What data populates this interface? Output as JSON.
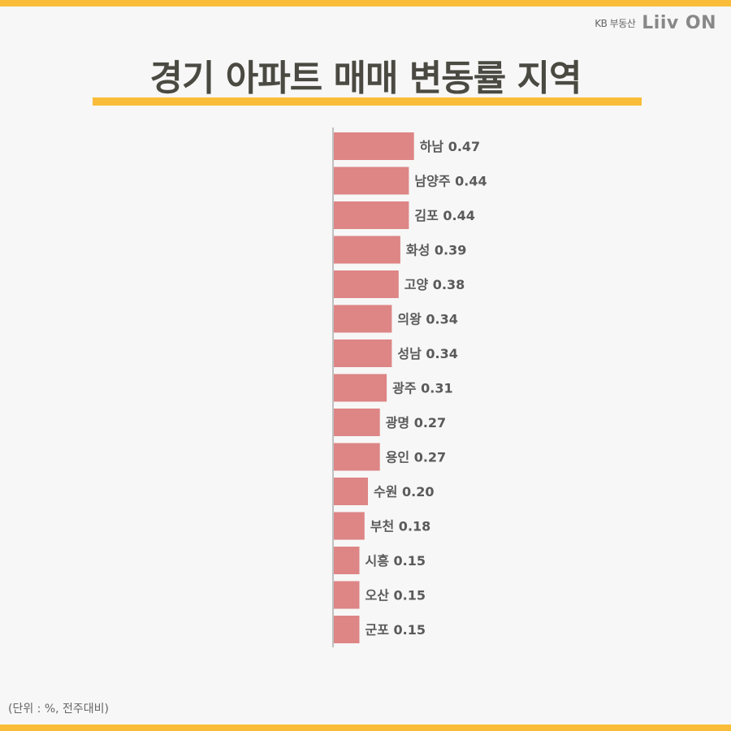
{
  "brand": {
    "company": "KB 부동산",
    "logo_text": "Liiv ON"
  },
  "title": "경기 아파트 매매 변동률 지역",
  "unit_note": "(단위 : %, 전주대비)",
  "colors": {
    "bar": "#de8585",
    "accent": "#f9bd3a",
    "title": "#4a4a42",
    "label": "#5a5a5a",
    "axis": "#888888"
  },
  "chart_data": {
    "type": "bar",
    "orientation": "horizontal",
    "title": "경기 아파트 매매 변동률 지역",
    "xlabel": "",
    "ylabel": "",
    "unit": "%",
    "categories": [
      "하남",
      "남양주",
      "김포",
      "화성",
      "고양",
      "의왕",
      "성남",
      "광주",
      "광명",
      "용인",
      "수원",
      "부천",
      "시흥",
      "오산",
      "군포"
    ],
    "values": [
      0.47,
      0.44,
      0.44,
      0.39,
      0.38,
      0.34,
      0.34,
      0.31,
      0.27,
      0.27,
      0.2,
      0.18,
      0.15,
      0.15,
      0.15
    ],
    "xlim": [
      0,
      0.5
    ],
    "grid": false,
    "legend": "none"
  }
}
